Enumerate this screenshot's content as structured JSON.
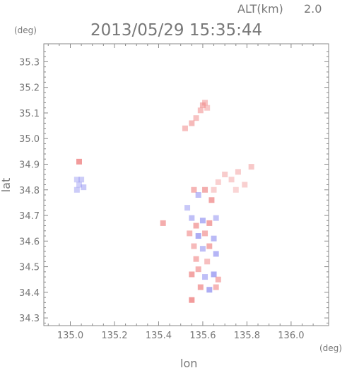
{
  "header": {
    "altitude_label": "ALT(km)",
    "altitude_value": "2.0",
    "timestamp": "2013/05/29 15:35:44",
    "y_unit": "(deg)",
    "x_unit": "(deg)"
  },
  "chart_data": {
    "type": "heatmap",
    "title": "2013/05/29 15:35:44",
    "xlabel": "lon",
    "ylabel": "lat",
    "xlim": [
      134.88,
      136.17
    ],
    "ylim": [
      34.27,
      35.37
    ],
    "x_ticks": [
      "135.0",
      "135.2",
      "135.4",
      "135.6",
      "135.8",
      "136.0"
    ],
    "y_ticks": [
      "34.3",
      "34.4",
      "34.5",
      "34.6",
      "34.7",
      "34.8",
      "34.9",
      "35.0",
      "35.1",
      "35.2",
      "35.3"
    ],
    "colors": {
      "positive": "#f08a8a",
      "negative": "#8a8af0",
      "frame": "#888888"
    },
    "cells": [
      {
        "lon": 135.04,
        "lat": 34.91,
        "v": 0.8
      },
      {
        "lon": 135.03,
        "lat": 34.84,
        "v": -0.2
      },
      {
        "lon": 135.05,
        "lat": 34.84,
        "v": -0.25
      },
      {
        "lon": 135.04,
        "lat": 34.82,
        "v": -0.2
      },
      {
        "lon": 135.06,
        "lat": 34.81,
        "v": -0.3
      },
      {
        "lon": 135.03,
        "lat": 34.8,
        "v": -0.25
      },
      {
        "lon": 135.52,
        "lat": 35.04,
        "v": 0.4
      },
      {
        "lon": 135.55,
        "lat": 35.06,
        "v": 0.45
      },
      {
        "lon": 135.57,
        "lat": 35.08,
        "v": 0.35
      },
      {
        "lon": 135.59,
        "lat": 35.11,
        "v": 0.4
      },
      {
        "lon": 135.61,
        "lat": 35.14,
        "v": 0.35
      },
      {
        "lon": 135.62,
        "lat": 35.12,
        "v": 0.3
      },
      {
        "lon": 135.6,
        "lat": 35.13,
        "v": 0.45
      },
      {
        "lon": 135.67,
        "lat": 34.83,
        "v": 0.2
      },
      {
        "lon": 135.7,
        "lat": 34.86,
        "v": 0.25
      },
      {
        "lon": 135.73,
        "lat": 34.84,
        "v": 0.2
      },
      {
        "lon": 135.76,
        "lat": 34.87,
        "v": 0.25
      },
      {
        "lon": 135.79,
        "lat": 34.82,
        "v": 0.2
      },
      {
        "lon": 135.82,
        "lat": 34.89,
        "v": 0.3
      },
      {
        "lon": 135.75,
        "lat": 34.8,
        "v": 0.15
      },
      {
        "lon": 135.65,
        "lat": 34.8,
        "v": 0.2
      },
      {
        "lon": 135.56,
        "lat": 34.8,
        "v": 0.5
      },
      {
        "lon": 135.58,
        "lat": 34.78,
        "v": -0.4
      },
      {
        "lon": 135.61,
        "lat": 34.8,
        "v": 0.6
      },
      {
        "lon": 135.64,
        "lat": 34.76,
        "v": 0.7
      },
      {
        "lon": 135.55,
        "lat": 34.69,
        "v": -0.4
      },
      {
        "lon": 135.57,
        "lat": 34.66,
        "v": 0.6
      },
      {
        "lon": 135.6,
        "lat": 34.68,
        "v": -0.5
      },
      {
        "lon": 135.63,
        "lat": 34.67,
        "v": 0.7
      },
      {
        "lon": 135.66,
        "lat": 34.69,
        "v": -0.35
      },
      {
        "lon": 135.54,
        "lat": 34.63,
        "v": 0.5
      },
      {
        "lon": 135.58,
        "lat": 34.62,
        "v": -0.6
      },
      {
        "lon": 135.61,
        "lat": 34.63,
        "v": 0.55
      },
      {
        "lon": 135.65,
        "lat": 34.61,
        "v": -0.45
      },
      {
        "lon": 135.56,
        "lat": 34.58,
        "v": 0.45
      },
      {
        "lon": 135.6,
        "lat": 34.57,
        "v": -0.4
      },
      {
        "lon": 135.63,
        "lat": 34.58,
        "v": 0.6
      },
      {
        "lon": 135.66,
        "lat": 34.55,
        "v": -0.5
      },
      {
        "lon": 135.57,
        "lat": 34.53,
        "v": 0.5
      },
      {
        "lon": 135.62,
        "lat": 34.52,
        "v": 0.4
      },
      {
        "lon": 135.55,
        "lat": 34.47,
        "v": 0.7
      },
      {
        "lon": 135.58,
        "lat": 34.49,
        "v": 0.55
      },
      {
        "lon": 135.61,
        "lat": 34.46,
        "v": -0.4
      },
      {
        "lon": 135.65,
        "lat": 34.47,
        "v": -0.6
      },
      {
        "lon": 135.67,
        "lat": 34.45,
        "v": 0.5
      },
      {
        "lon": 135.59,
        "lat": 34.42,
        "v": 0.65
      },
      {
        "lon": 135.63,
        "lat": 34.41,
        "v": -0.6
      },
      {
        "lon": 135.66,
        "lat": 34.42,
        "v": 0.5
      },
      {
        "lon": 135.55,
        "lat": 34.37,
        "v": 0.8
      },
      {
        "lon": 135.42,
        "lat": 34.67,
        "v": 0.6
      },
      {
        "lon": 135.53,
        "lat": 34.73,
        "v": -0.3
      }
    ]
  }
}
